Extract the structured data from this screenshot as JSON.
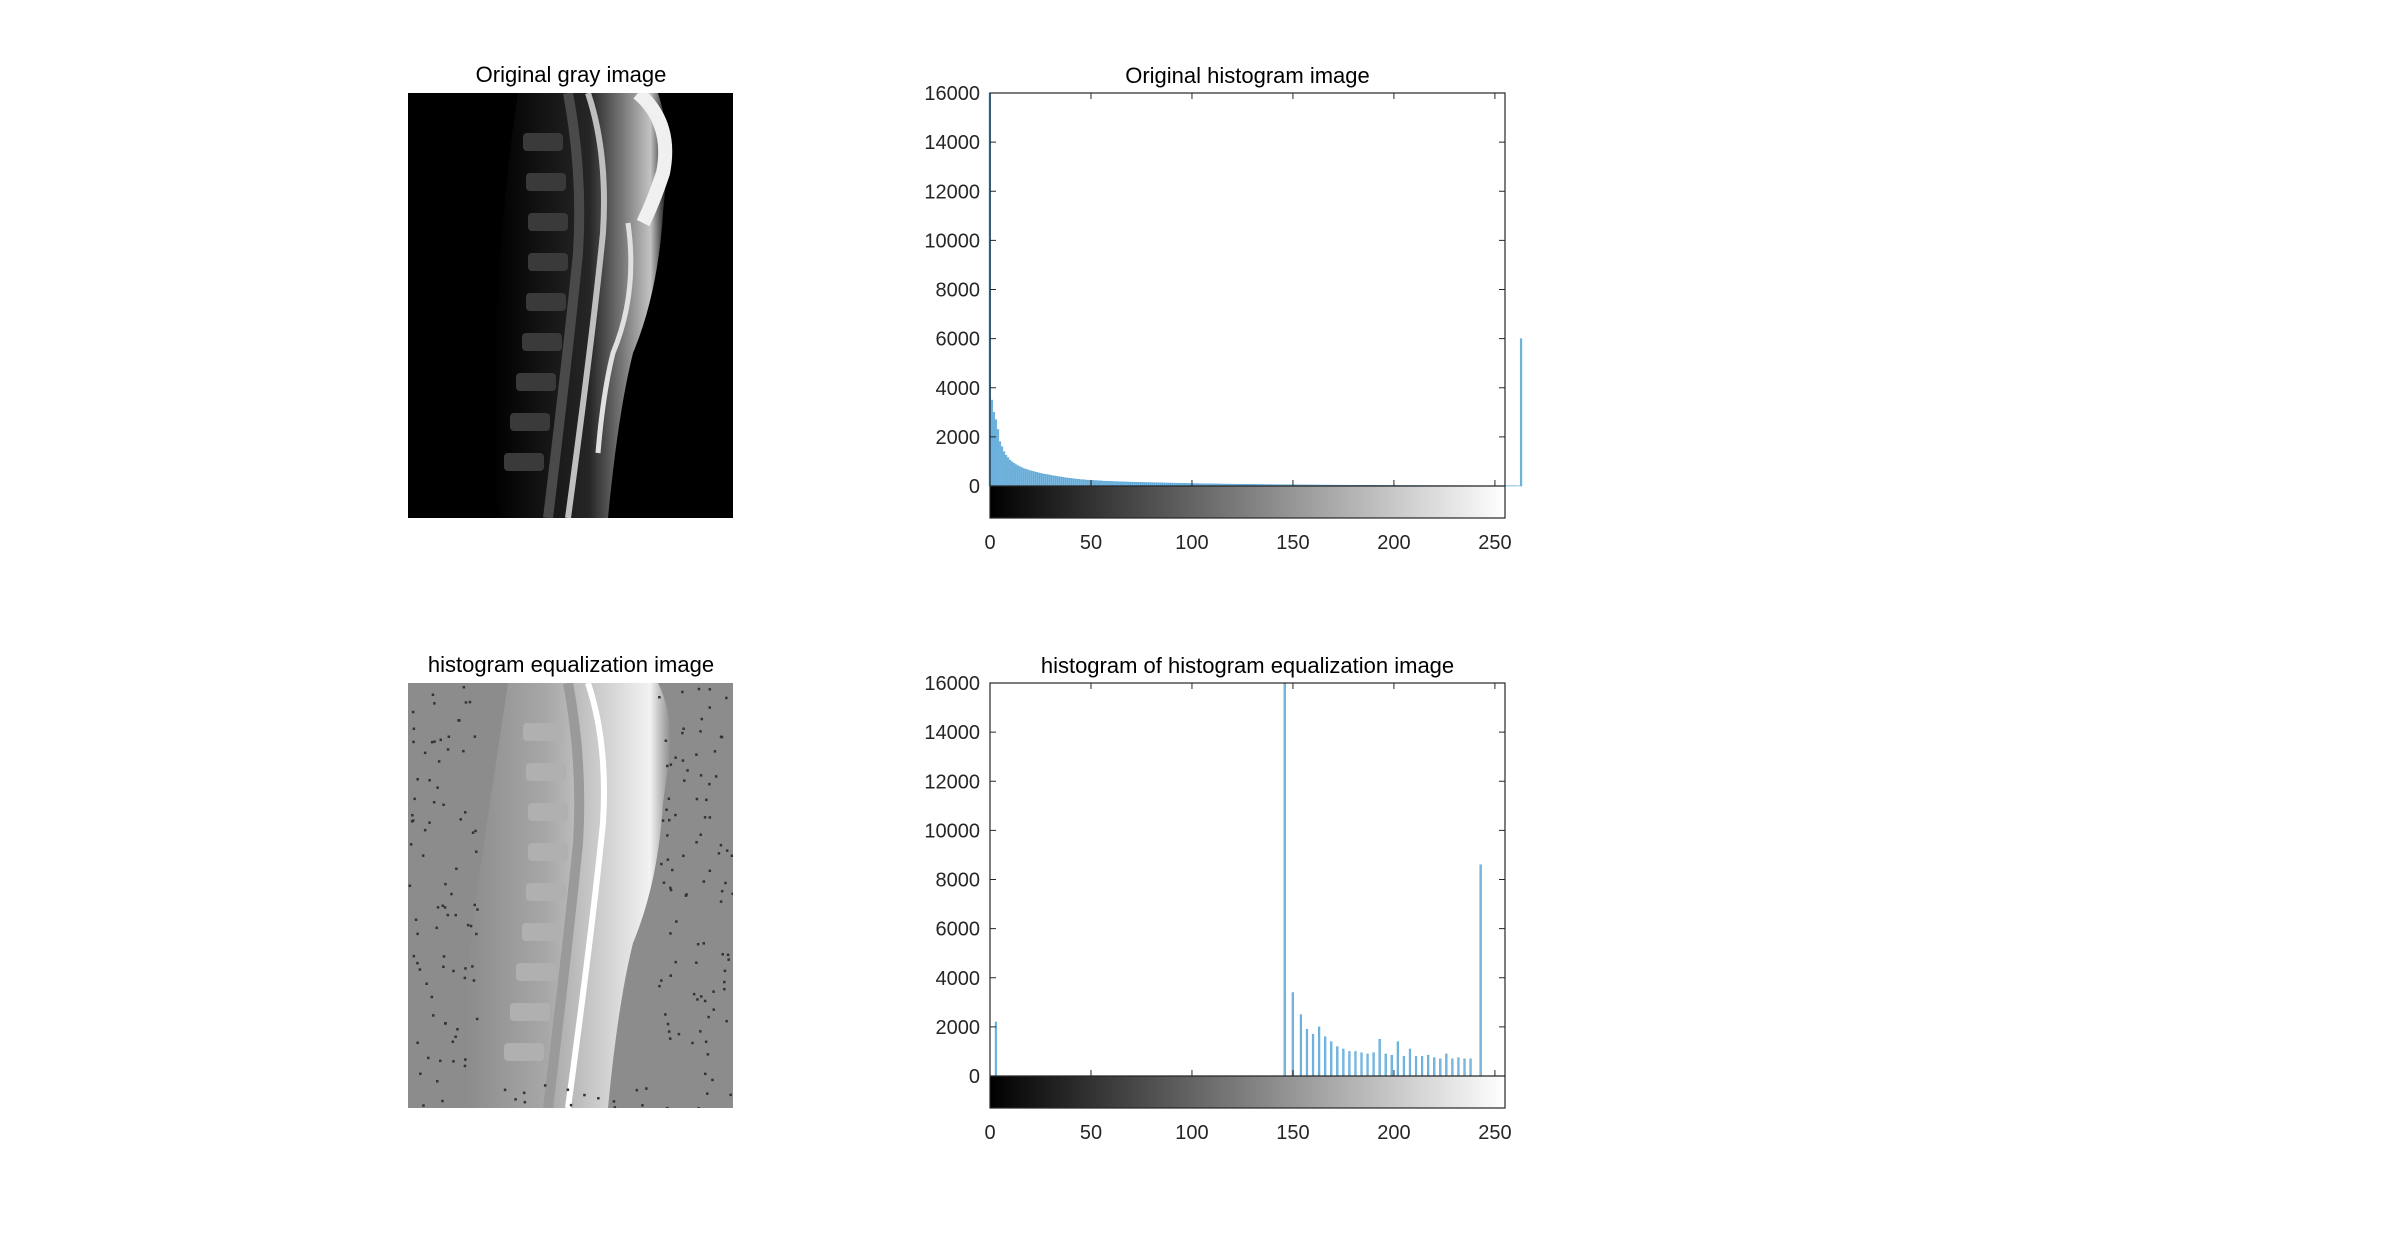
{
  "panels": {
    "original_image_title": "Original gray image",
    "equalized_image_title": "histogram equalization image"
  },
  "colors": {
    "bar": "#4a9fd6",
    "bar_fill": "#7ab7de",
    "axis": "#262626"
  },
  "chart_data": [
    {
      "type": "bar",
      "title": "Original histogram image",
      "xlabel": "",
      "ylabel": "",
      "xlim": [
        0,
        255
      ],
      "ylim": [
        0,
        16000
      ],
      "xticks": [
        0,
        50,
        100,
        150,
        200,
        250
      ],
      "yticks": [
        0,
        2000,
        4000,
        6000,
        8000,
        10000,
        12000,
        14000,
        16000
      ],
      "colorbar": "gray",
      "grid": false,
      "series": [
        {
          "x_start": 0,
          "values": [
            16000,
            3500,
            3000,
            2700,
            2300,
            1800,
            1600,
            1400,
            1250,
            1150,
            1050,
            980,
            920,
            870,
            820,
            780,
            740,
            700,
            680,
            650,
            620,
            600,
            580,
            560,
            540,
            520,
            500,
            480,
            470,
            460,
            440,
            420,
            410,
            400,
            380,
            370,
            360,
            340,
            330,
            320,
            310,
            300,
            290,
            280,
            270,
            260,
            260,
            250,
            240,
            240,
            230,
            230,
            220,
            220,
            210,
            210,
            200,
            200,
            195,
            190,
            190,
            185,
            180,
            180,
            175,
            170,
            170,
            165,
            165,
            160,
            160,
            155,
            155,
            150,
            150,
            148,
            146,
            144,
            142,
            140,
            138,
            136,
            134,
            132,
            130,
            128,
            126,
            124,
            122,
            120,
            120,
            118,
            116,
            114,
            112,
            110,
            110,
            108,
            106,
            104,
            102,
            100,
            100,
            98,
            96,
            95,
            94,
            92,
            90,
            90,
            88,
            86,
            85,
            84,
            82,
            80,
            80,
            79,
            78,
            77,
            76,
            75,
            74,
            73,
            72,
            71,
            70,
            70,
            69,
            68,
            67,
            66,
            65,
            64,
            63,
            62,
            61,
            60,
            60,
            59,
            58,
            57,
            56,
            55,
            55,
            54,
            53,
            52,
            51,
            50,
            50,
            49,
            48,
            48,
            47,
            46,
            46,
            45,
            44,
            44,
            43,
            42,
            42,
            41,
            40,
            40,
            40,
            39,
            39,
            38,
            38,
            37,
            37,
            36,
            36,
            35,
            35,
            34,
            34,
            33,
            33,
            32,
            32,
            32,
            31,
            31,
            30,
            30,
            30,
            29,
            29,
            28,
            28,
            28,
            27,
            27,
            27,
            26,
            26,
            26,
            25,
            25,
            25,
            24,
            24,
            24,
            23,
            23,
            23,
            22,
            22,
            22,
            21,
            21,
            21,
            20,
            20,
            20,
            20,
            19,
            19,
            19,
            18,
            18,
            18,
            18,
            17,
            17,
            17,
            16,
            16,
            16,
            16,
            15,
            15,
            15,
            15,
            14,
            14,
            14,
            14,
            13,
            13,
            13,
            13,
            12,
            12,
            12,
            12,
            11,
            11,
            11,
            11,
            10,
            10,
            10,
            10,
            9,
            9,
            9,
            9,
            8,
            8,
            6000
          ]
        }
      ]
    },
    {
      "type": "bar",
      "title": "histogram of histogram equalization image",
      "xlabel": "",
      "ylabel": "",
      "xlim": [
        0,
        255
      ],
      "ylim": [
        0,
        16000
      ],
      "xticks": [
        0,
        50,
        100,
        150,
        200,
        250
      ],
      "yticks": [
        0,
        2000,
        4000,
        6000,
        8000,
        10000,
        12000,
        14000,
        16000
      ],
      "colorbar": "gray",
      "grid": false,
      "series": [
        {
          "bins": [
            [
              3,
              2200
            ],
            [
              146,
              16000
            ],
            [
              150,
              3400
            ],
            [
              154,
              2500
            ],
            [
              157,
              1900
            ],
            [
              160,
              1700
            ],
            [
              163,
              2000
            ],
            [
              166,
              1600
            ],
            [
              169,
              1400
            ],
            [
              172,
              1200
            ],
            [
              175,
              1100
            ],
            [
              178,
              1000
            ],
            [
              181,
              1000
            ],
            [
              184,
              950
            ],
            [
              187,
              900
            ],
            [
              190,
              950
            ],
            [
              193,
              1500
            ],
            [
              196,
              900
            ],
            [
              199,
              850
            ],
            [
              202,
              1400
            ],
            [
              205,
              800
            ],
            [
              208,
              1100
            ],
            [
              211,
              800
            ],
            [
              214,
              800
            ],
            [
              217,
              850
            ],
            [
              220,
              750
            ],
            [
              223,
              700
            ],
            [
              226,
              900
            ],
            [
              229,
              700
            ],
            [
              232,
              750
            ],
            [
              235,
              700
            ],
            [
              238,
              700
            ],
            [
              243,
              8600
            ]
          ]
        }
      ]
    }
  ]
}
